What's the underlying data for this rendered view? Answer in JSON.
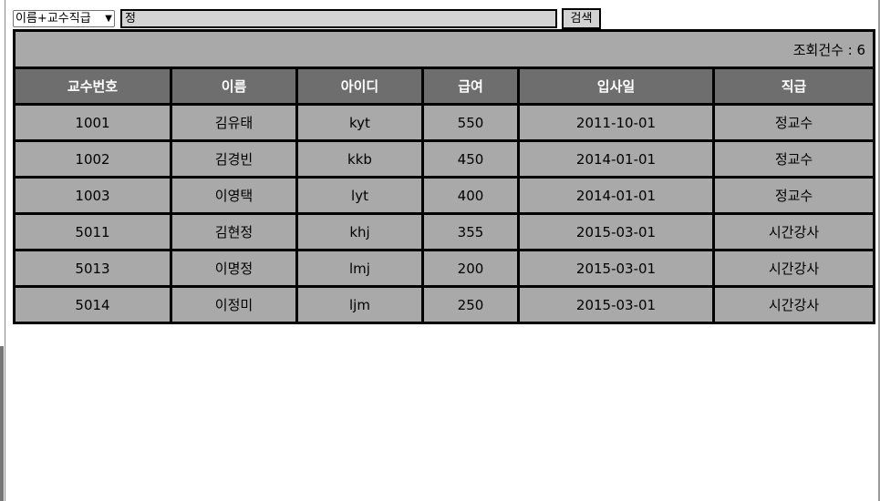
{
  "search": {
    "select_value": "이름+교수직급",
    "query": "정",
    "button_label": "검색"
  },
  "result": {
    "count_text": "조회건수 : 6"
  },
  "table": {
    "columns": [
      "교수번호",
      "이름",
      "아이디",
      "급여",
      "입사일",
      "직급"
    ],
    "rows": [
      [
        "1001",
        "김유태",
        "kyt",
        "550",
        "2011-10-01",
        "정교수"
      ],
      [
        "1002",
        "김경빈",
        "kkb",
        "450",
        "2014-01-01",
        "정교수"
      ],
      [
        "1003",
        "이영택",
        "lyt",
        "400",
        "2014-01-01",
        "정교수"
      ],
      [
        "5011",
        "김현정",
        "khj",
        "355",
        "2015-03-01",
        "시간강사"
      ],
      [
        "5013",
        "이명정",
        "lmj",
        "200",
        "2015-03-01",
        "시간강사"
      ],
      [
        "5014",
        "이정미",
        "ljm",
        "250",
        "2015-03-01",
        "시간강사"
      ]
    ]
  },
  "colors": {
    "header_bg": "#6e6e6e",
    "cell_bg": "#a9a9a9",
    "input_bg": "#d3d3d3"
  }
}
